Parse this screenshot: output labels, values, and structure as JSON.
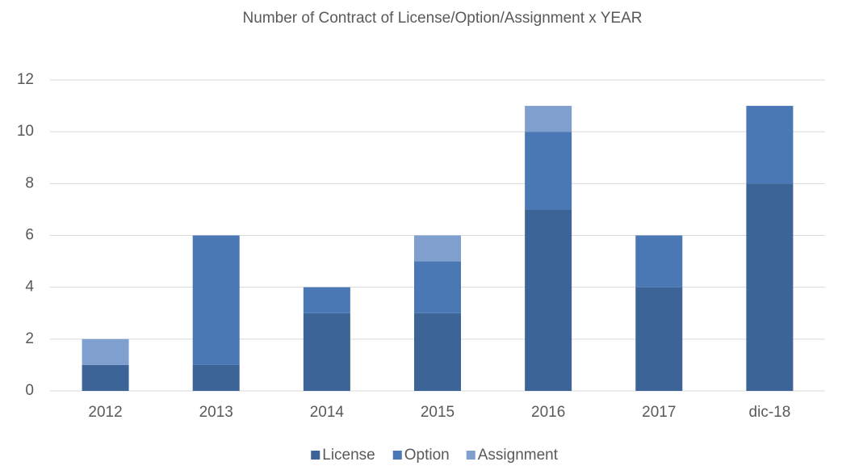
{
  "chart_data": {
    "type": "stacked_bar",
    "title": "Number of Contract of License/Option/Assignment  x YEAR",
    "categories": [
      "2012",
      "2013",
      "2014",
      "2015",
      "2016",
      "2017",
      "dic-18"
    ],
    "series": [
      {
        "name": "License",
        "color": "#3c6496",
        "values": [
          1,
          1,
          3,
          3,
          7,
          4,
          8
        ]
      },
      {
        "name": "Option",
        "color": "#4a78b4",
        "values": [
          0,
          5,
          1,
          2,
          3,
          2,
          3
        ]
      },
      {
        "name": "Assignment",
        "color": "#7f9fcf",
        "values": [
          1,
          0,
          0,
          1,
          1,
          0,
          0
        ]
      }
    ],
    "ylim": [
      0,
      12
    ],
    "yticks": [
      0,
      2,
      4,
      6,
      8,
      10,
      12
    ],
    "grid": true,
    "legend": "bottom"
  }
}
